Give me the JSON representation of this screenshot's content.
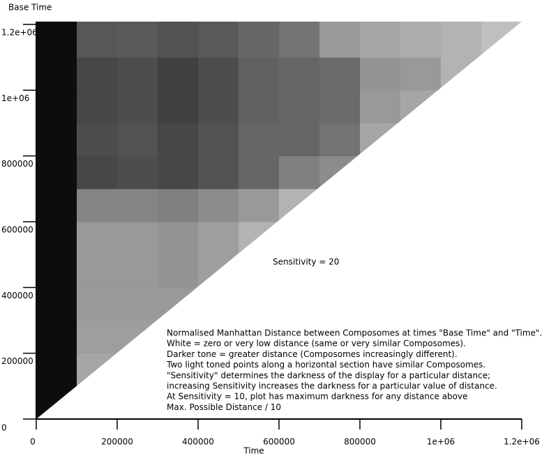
{
  "chart_data": {
    "type": "heatmap",
    "xlabel": "Time",
    "ylabel": "Base Time",
    "xlim": [
      0,
      1200000
    ],
    "ylim": [
      0,
      1200000
    ],
    "xticks": [
      0,
      200000,
      400000,
      600000,
      800000,
      {
        "value": 1000000,
        "label": "1e+06"
      },
      {
        "value": 1200000,
        "label": "1.2e+06"
      }
    ],
    "yticks": [
      0,
      200000,
      400000,
      600000,
      800000,
      {
        "value": 1000000,
        "label": "1e+06"
      },
      {
        "value": 1200000,
        "label": "1.2e+06"
      }
    ],
    "xbins": [
      0,
      100000,
      200000,
      300000,
      400000,
      500000,
      600000,
      700000,
      800000,
      900000,
      1000000,
      1100000,
      1200000
    ],
    "ybins": [
      0,
      100000,
      200000,
      300000,
      400000,
      500000,
      600000,
      700000,
      800000,
      900000,
      1000000,
      1100000,
      1200000
    ],
    "z": [
      [
        95,
        null,
        null,
        null,
        null,
        null,
        null,
        null,
        null,
        null,
        null,
        null
      ],
      [
        95,
        35,
        null,
        null,
        null,
        null,
        null,
        null,
        null,
        null,
        null,
        null
      ],
      [
        95,
        38,
        38,
        null,
        null,
        null,
        null,
        null,
        null,
        null,
        null,
        null
      ],
      [
        95,
        40,
        40,
        40,
        null,
        null,
        null,
        null,
        null,
        null,
        null,
        null
      ],
      [
        95,
        40,
        40,
        42,
        38,
        null,
        null,
        null,
        null,
        null,
        null,
        null
      ],
      [
        95,
        40,
        40,
        42,
        38,
        30,
        null,
        null,
        null,
        null,
        null,
        null
      ],
      [
        95,
        48,
        48,
        50,
        45,
        40,
        30,
        null,
        null,
        null,
        null,
        null
      ],
      [
        95,
        72,
        70,
        72,
        68,
        60,
        50,
        45,
        null,
        null,
        null,
        null
      ],
      [
        95,
        70,
        68,
        72,
        68,
        60,
        60,
        55,
        35,
        null,
        null,
        null
      ],
      [
        95,
        72,
        70,
        75,
        70,
        62,
        60,
        58,
        40,
        35,
        null,
        null
      ],
      [
        95,
        72,
        70,
        75,
        70,
        62,
        60,
        58,
        42,
        40,
        30,
        null
      ],
      [
        95,
        66,
        65,
        68,
        65,
        60,
        55,
        40,
        35,
        32,
        30,
        25
      ]
    ],
    "annotations": [
      "Sensitivity = 20"
    ],
    "annotation_lines": [
      "Normalised Manhattan Distance between Composomes at times \"Base Time\" and \"Time\".",
      "White = zero or very low distance (same or very similar Composomes).",
      "Darker tone = greater distance (Composomes increasingly different).",
      "Two light toned points along a horizontal section have similar Composomes.",
      "\"Sensitivity\" determines the darkness of the display for a particular distance;",
      "increasing Sensitivity increases the darkness for a particular value of distance.",
      "At Sensitivity = 10, plot has maximum darkness for any distance above",
      "Max. Possible Distance / 10"
    ]
  }
}
